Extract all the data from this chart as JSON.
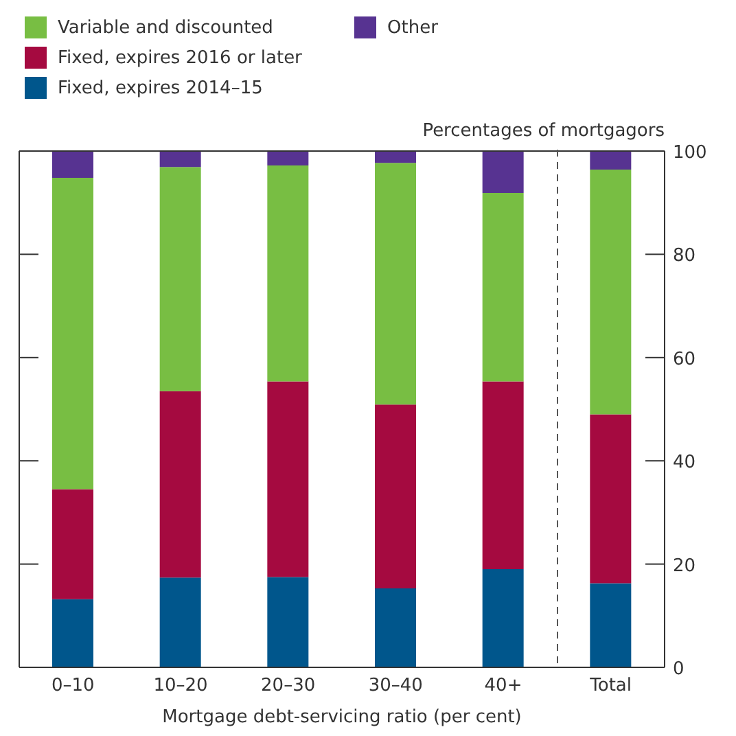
{
  "chart_data": {
    "type": "bar",
    "stacked": true,
    "categories": [
      "0–10",
      "10–20",
      "20–30",
      "30–40",
      "40+",
      "Total"
    ],
    "series": [
      {
        "name": "Fixed, expires 2014–15",
        "color": "#00568c",
        "values": [
          13.2,
          17.4,
          17.5,
          15.3,
          19.0,
          16.3
        ]
      },
      {
        "name": "Fixed, expires 2016 or later",
        "color": "#a50a40",
        "values": [
          21.3,
          36.1,
          37.9,
          35.6,
          36.4,
          32.7
        ]
      },
      {
        "name": "Variable and discounted",
        "color": "#78be43",
        "values": [
          60.3,
          43.4,
          41.8,
          46.8,
          36.5,
          47.4
        ]
      },
      {
        "name": "Other",
        "color": "#573391",
        "values": [
          5.2,
          3.1,
          2.8,
          2.3,
          8.1,
          3.6
        ]
      }
    ],
    "ylim": [
      0,
      100
    ],
    "yticks": [
      0,
      20,
      40,
      60,
      80,
      100
    ],
    "ylabel": "Percentages of mortgagors",
    "xlabel": "Mortgage debt-servicing ratio (per cent)",
    "legend": "top left"
  }
}
